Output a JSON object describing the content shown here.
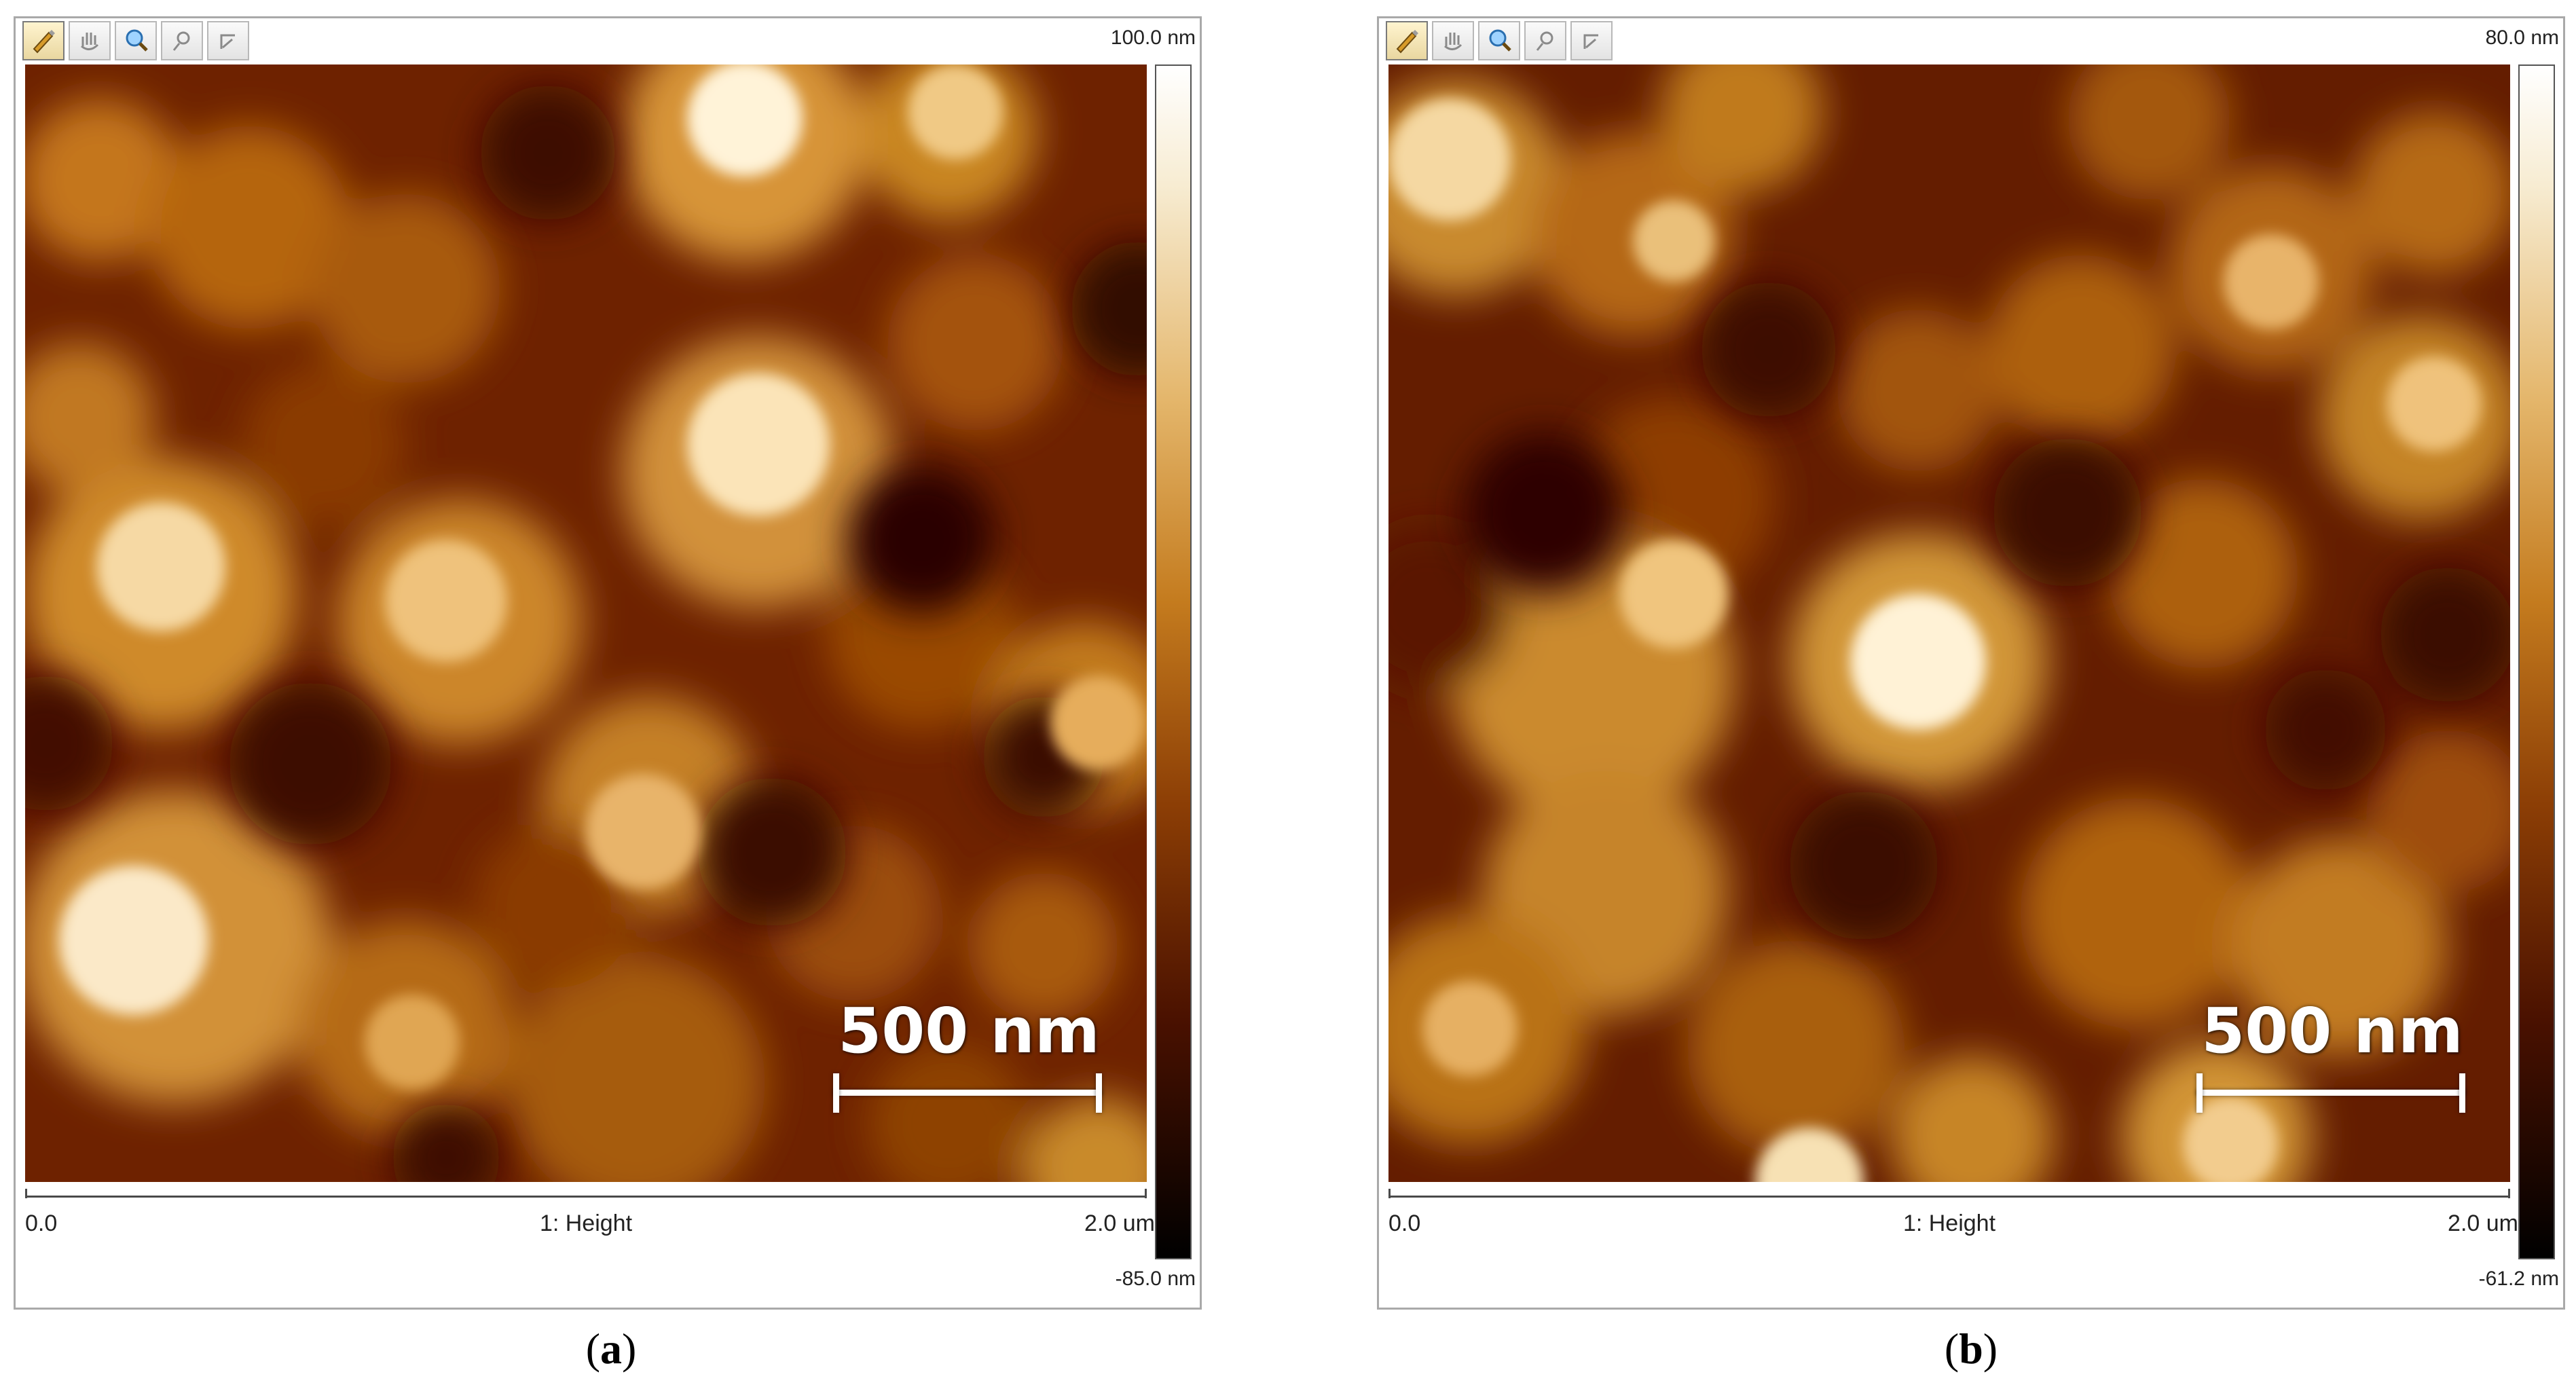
{
  "panels": [
    {
      "id": "a",
      "toolbar": [
        "pencil-tool",
        "hand-tool",
        "zoom-tool",
        "zoom-in-tool",
        "zoom-out-tool"
      ],
      "colorbar": {
        "max_label": "100.0 nm",
        "min_label": "-85.0 nm"
      },
      "axis": {
        "start": "0.0",
        "label": "1: Height",
        "end": "2.0 um"
      },
      "scale_bar": "500 nm",
      "caption": {
        "open": "(",
        "letter": "a",
        "close": ")"
      }
    },
    {
      "id": "b",
      "toolbar": [
        "pencil-tool",
        "hand-tool",
        "zoom-tool",
        "zoom-in-tool",
        "zoom-out-tool"
      ],
      "colorbar": {
        "max_label": "80.0 nm",
        "min_label": "-61.2 nm"
      },
      "axis": {
        "start": "0.0",
        "label": "1: Height",
        "end": "2.0 um"
      },
      "scale_bar": "500 nm",
      "caption": {
        "open": "(",
        "letter": "b",
        "close": ")"
      }
    }
  ],
  "colors": {
    "colormap_high": "#ffffff",
    "colormap_mid": "#c47b1e",
    "colormap_low": "#000000"
  }
}
